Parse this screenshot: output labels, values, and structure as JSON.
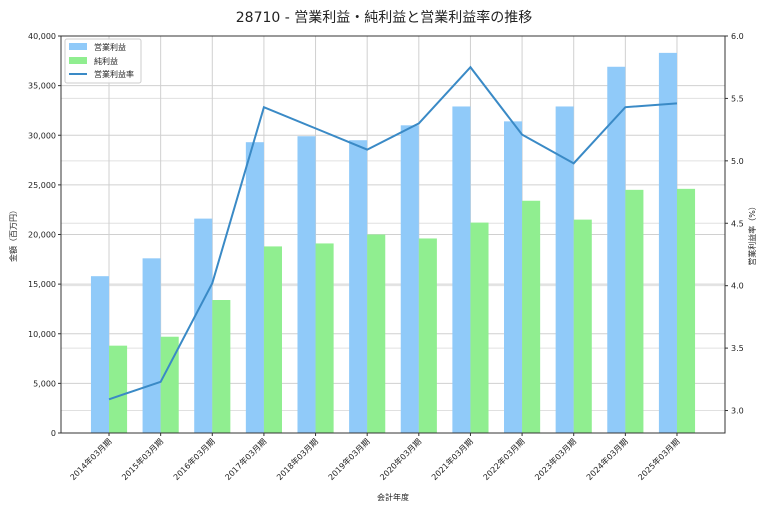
{
  "chart_data": {
    "type": "bar",
    "title": "28710 - 営業利益・純利益と営業利益率の推移",
    "xlabel": "会計年度",
    "ylabel": "金額（百万円）",
    "ylabel_right": "営業利益率（%）",
    "categories": [
      "2014年03月期",
      "2015年03月期",
      "2016年03月期",
      "2017年03月期",
      "2018年03月期",
      "2019年03月期",
      "2020年03月期",
      "2021年03月期",
      "2022年03月期",
      "2023年03月期",
      "2024年03月期",
      "2025年03月期"
    ],
    "series": [
      {
        "name": "営業利益",
        "type": "bar",
        "axis": "left",
        "color": "#90caf9",
        "values": [
          15800,
          17600,
          21600,
          29300,
          29900,
          29500,
          31000,
          32900,
          31400,
          32900,
          36900,
          38300
        ]
      },
      {
        "name": "純利益",
        "type": "bar",
        "axis": "left",
        "color": "#90ee90",
        "values": [
          8800,
          9700,
          13400,
          18800,
          19100,
          20000,
          19600,
          21200,
          23400,
          21500,
          24500,
          24600
        ]
      },
      {
        "name": "営業利益率",
        "type": "line",
        "axis": "right",
        "color": "#3a8ac6",
        "values": [
          3.09,
          3.23,
          4.02,
          5.43,
          5.26,
          5.09,
          5.3,
          5.75,
          5.21,
          4.98,
          5.43,
          5.46
        ]
      }
    ],
    "ylim": [
      0,
      40000
    ],
    "yticks": [
      "0",
      "5,000",
      "10,000",
      "15,000",
      "20,000",
      "25,000",
      "30,000",
      "35,000",
      "40,000"
    ],
    "ylim_right": [
      2.82,
      6.0
    ],
    "yticks_right": [
      "3.0",
      "3.5",
      "4.0",
      "4.5",
      "5.0",
      "5.5",
      "6.0"
    ],
    "grid": true,
    "legend": "top-left"
  }
}
